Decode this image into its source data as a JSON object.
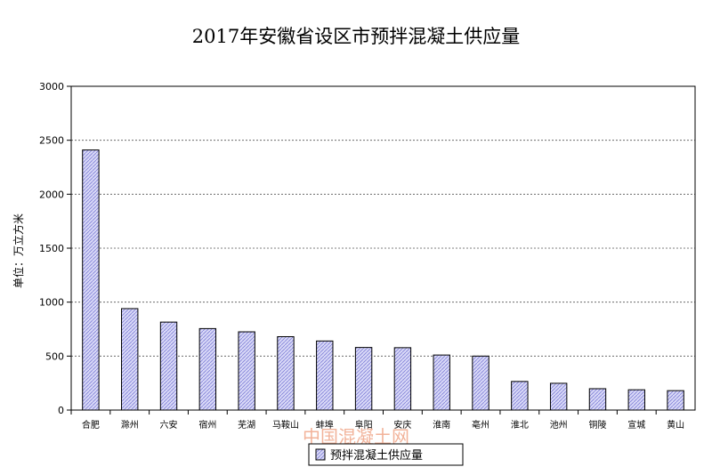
{
  "chart_data": {
    "type": "bar",
    "title": "2017年安徽省设区市预拌混凝土供应量",
    "ylabel": "单位：万立方米",
    "xlabel": "",
    "ylim": [
      0,
      3000
    ],
    "yticks": [
      0,
      500,
      1000,
      1500,
      2000,
      2500,
      3000
    ],
    "grid": "horizontal-dashed",
    "legend_position": "bottom",
    "categories": [
      "合肥",
      "滁州",
      "六安",
      "宿州",
      "芜湖",
      "马鞍山",
      "蚌埠",
      "阜阳",
      "安庆",
      "淮南",
      "亳州",
      "淮北",
      "池州",
      "铜陵",
      "宣城",
      "黄山"
    ],
    "series": [
      {
        "name": "预拌混凝土供应量",
        "values": [
          2410,
          940,
          815,
          755,
          725,
          680,
          640,
          580,
          578,
          510,
          500,
          265,
          248,
          198,
          188,
          180
        ]
      }
    ],
    "colors": {
      "bar_fill": "#d9d9f7",
      "bar_stroke": "#000000",
      "grid": "#555555"
    }
  },
  "watermark": "中国混凝土网"
}
